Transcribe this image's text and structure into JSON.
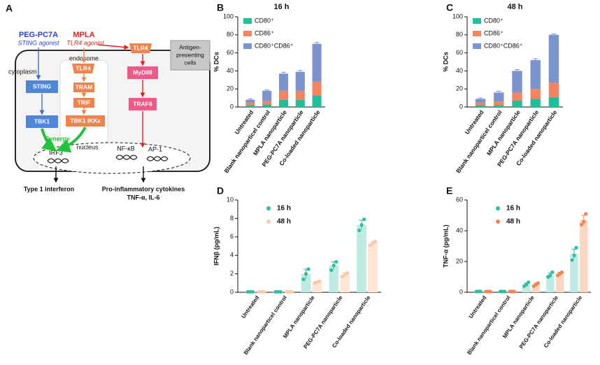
{
  "diagram": {
    "label": "A",
    "nodes": [
      "PEG-PC7A",
      "STING agonist",
      "MPLA",
      "TLR4 agonist",
      "TLR4",
      "cytoplasm",
      "endosome",
      "STING",
      "TLR4",
      "TRAM",
      "TRIF",
      "TBK1",
      "TBK1 IKKε",
      "MyD88",
      "TRAF6",
      "Antigen-",
      "presenting",
      "cells",
      "Synergy",
      "IRF3",
      "nucleus",
      "NF-κB",
      "AP-1",
      "Type 1 interferon",
      "Pro-inflammatory cytokines",
      "TNF-α, IL-6"
    ]
  },
  "chart_data": [
    {
      "type": "stacked_bar",
      "panel": "B",
      "title": "16 h",
      "y_label": "% DCs",
      "categories": [
        "Untreated",
        "Blank nanoparticel control",
        "MPLA nanoparticle",
        "PEG-PC7A nanoparticle",
        "Co-loaded nanoparticle"
      ],
      "series": [
        {
          "name": "CD80⁺",
          "color": "#1fbf99",
          "values": [
            2,
            3,
            8,
            8,
            13
          ],
          "errors": [
            0.5,
            0.5,
            1,
            1,
            2
          ]
        },
        {
          "name": "CD86⁺",
          "color": "#f4845f",
          "values": [
            3,
            4,
            10,
            10,
            15
          ],
          "errors": [
            0.5,
            0.5,
            1,
            1,
            3
          ]
        },
        {
          "name": "CD80⁺CD86⁺",
          "color": "#7b93cf",
          "values": [
            3,
            11,
            19,
            21,
            42
          ],
          "errors": [
            1,
            1,
            1.5,
            1.5,
            1.5
          ]
        }
      ],
      "ylim": [
        0,
        100
      ],
      "yticks": [
        0,
        20,
        40,
        60,
        80,
        100
      ]
    },
    {
      "type": "stacked_bar",
      "panel": "C",
      "title": "48 h",
      "y_label": "% DCs",
      "categories": [
        "Untreated",
        "Blank nanoparticel control",
        "MPLA nanoparticle",
        "PEG-PC7A nanoparticle",
        "Co-loaded nanoparticle"
      ],
      "series": [
        {
          "name": "CD80⁺",
          "color": "#1fbf99",
          "values": [
            2,
            2,
            7,
            9,
            11
          ],
          "errors": [
            0.5,
            0.5,
            1,
            1,
            1
          ]
        },
        {
          "name": "CD86⁺",
          "color": "#f4845f",
          "values": [
            3,
            4,
            9,
            11,
            16
          ],
          "errors": [
            0.5,
            0.5,
            1,
            1,
            1
          ]
        },
        {
          "name": "CD80⁺CD86⁺",
          "color": "#7b93cf",
          "values": [
            4,
            10,
            24,
            32,
            53
          ],
          "errors": [
            1,
            1.5,
            1.5,
            1.5,
            1
          ]
        }
      ],
      "ylim": [
        0,
        100
      ],
      "yticks": [
        0,
        20,
        40,
        60,
        80,
        100
      ]
    },
    {
      "type": "bar",
      "panel": "D",
      "y_label": "IFNβ (pg/mL)",
      "categories": [
        "Untreated",
        "Blank nanoparticel control",
        "MPLA nanoparticle",
        "PEG-PC7A nanoparticle",
        "Co-loaded nanoparticle"
      ],
      "series": [
        {
          "name": "16 h",
          "color": "#2bbfa0",
          "bar_color": "#bfece2",
          "values": [
            0.05,
            0.05,
            2.0,
            2.9,
            7.3
          ],
          "errors": [
            0,
            0,
            0.5,
            0.4,
            0.5
          ],
          "points": [
            [
              0.05,
              0.05,
              0.05
            ],
            [
              0.05,
              0.05,
              0.05
            ],
            [
              1.4,
              2.0,
              2.5
            ],
            [
              2.4,
              2.9,
              3.3
            ],
            [
              6.7,
              7.3,
              7.9
            ]
          ]
        },
        {
          "name": "48 h",
          "color": "#f9c9a8",
          "bar_color": "#fde6d6",
          "values": [
            0.05,
            0.05,
            1.1,
            1.9,
            5.3
          ],
          "errors": [
            0,
            0,
            0.1,
            0.2,
            0.2
          ],
          "points": [
            [
              0.05,
              0.05,
              0.05
            ],
            [
              0.05,
              0.05,
              0.05
            ],
            [
              1.0,
              1.1,
              1.2
            ],
            [
              1.7,
              1.9,
              2.1
            ],
            [
              5.1,
              5.3,
              5.5
            ]
          ]
        }
      ],
      "ylim": [
        0,
        10
      ],
      "yticks": [
        0,
        2,
        4,
        6,
        8,
        10
      ]
    },
    {
      "type": "bar",
      "panel": "E",
      "y_label": "TNF-α (pg/mL)",
      "categories": [
        "Untreated",
        "Blank nanoparticel control",
        "MPLA nanoparticle",
        "PEG-PC7A nanoparticle",
        "Co-loaded nanoparticle"
      ],
      "series": [
        {
          "name": "16 h",
          "color": "#2bbfa0",
          "bar_color": "#bfece2",
          "values": [
            0.5,
            0.5,
            5,
            11,
            25
          ],
          "errors": [
            0,
            0,
            1,
            1.5,
            3
          ],
          "points": [
            [
              0.5,
              0.5,
              0.5
            ],
            [
              0.5,
              0.5,
              0.5
            ],
            [
              4,
              5,
              6.5
            ],
            [
              10,
              11,
              13
            ],
            [
              21,
              24,
              29
            ]
          ]
        },
        {
          "name": "48 h",
          "color": "#f4844c",
          "bar_color": "#fbd6c2",
          "values": [
            0.5,
            0.5,
            5,
            12,
            47
          ],
          "errors": [
            0,
            0,
            1,
            1,
            3
          ],
          "points": [
            [
              0.5,
              0.5,
              0.5
            ],
            [
              0.5,
              0.5,
              0.5
            ],
            [
              4,
              5,
              6
            ],
            [
              11,
              12,
              13
            ],
            [
              44,
              46,
              51
            ]
          ]
        }
      ],
      "ylim": [
        0,
        60
      ],
      "yticks": [
        0,
        20,
        40,
        60
      ]
    }
  ]
}
